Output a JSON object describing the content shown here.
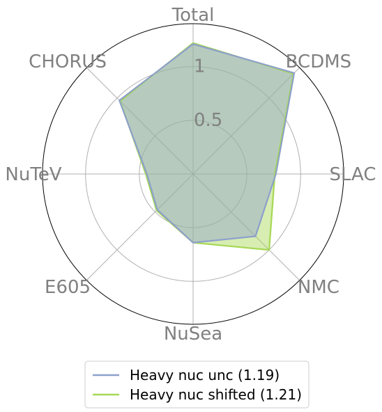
{
  "chart_data": {
    "type": "radar",
    "title": "",
    "axes": [
      "Total",
      "BCDMS",
      "SLAC",
      "NMC",
      "NuSea",
      "E605",
      "NuTeV",
      "CHORUS"
    ],
    "radial_ticks": [
      {
        "value": 0.5,
        "label": "0.5"
      },
      {
        "value": 1,
        "label": "1"
      }
    ],
    "rmax": 1.4,
    "grid": true,
    "legend_position": "bottom-center",
    "series": [
      {
        "name": "Heavy nuc unc (1.19)",
        "color": "#8da0cb",
        "values": [
          1.21,
          1.33,
          0.77,
          0.82,
          0.64,
          0.47,
          0.43,
          0.97
        ]
      },
      {
        "name": "Heavy nuc shifted (1.21)",
        "color": "#a6d854",
        "values": [
          1.22,
          1.32,
          0.76,
          1.0,
          0.64,
          0.48,
          0.44,
          0.96
        ]
      }
    ]
  }
}
